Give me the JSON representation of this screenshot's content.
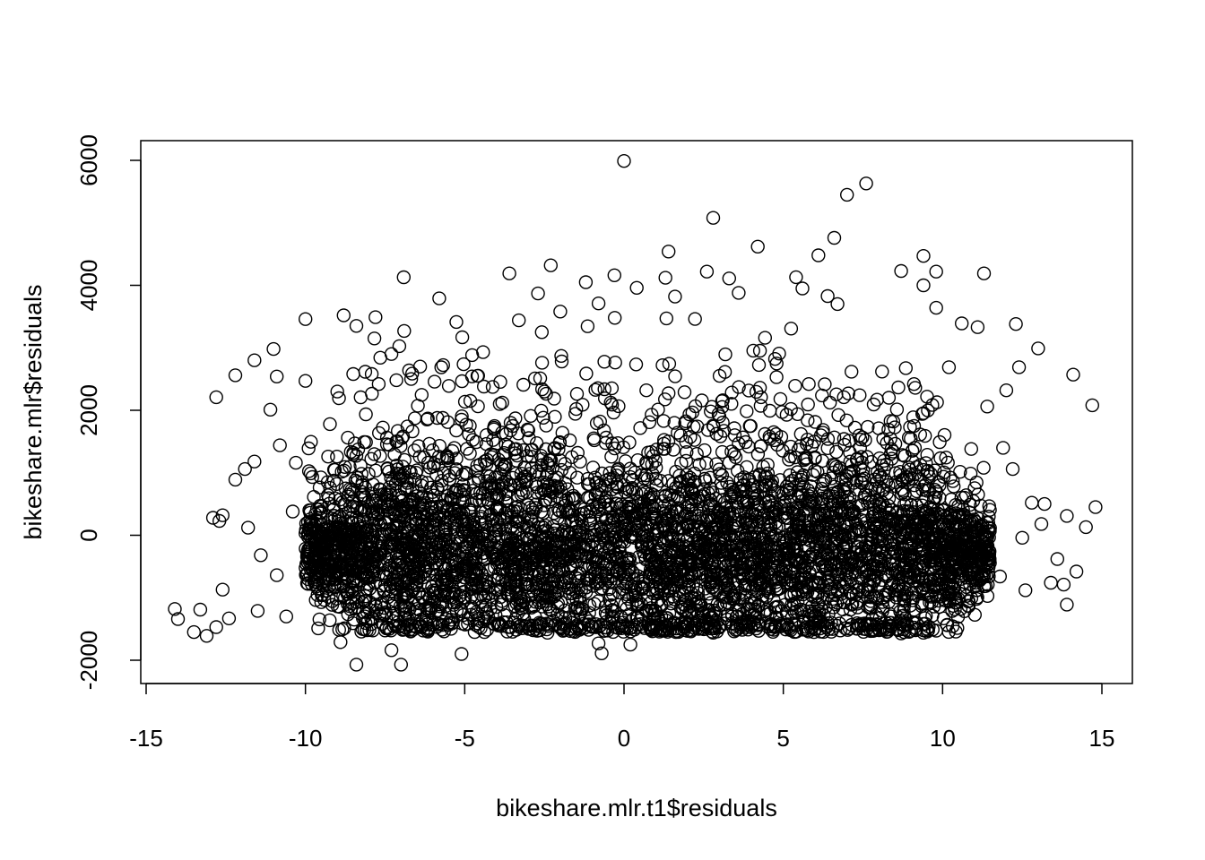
{
  "chart_data": {
    "type": "scatter",
    "title": "",
    "xlabel": "bikeshare.mlr.t1$residuals",
    "ylabel": "bikeshare.mlr$residuals",
    "xlim": [
      -15,
      15
    ],
    "ylim": [
      -2000,
      6000
    ],
    "x_ticks": [
      -15,
      -10,
      -5,
      0,
      5,
      10,
      15
    ],
    "y_ticks": [
      -2000,
      0,
      2000,
      4000,
      6000
    ],
    "x_tick_labels": [
      "-15",
      "-10",
      "-5",
      "0",
      "5",
      "10",
      "15"
    ],
    "y_tick_labels": [
      "-2000",
      "0",
      "2000",
      "4000",
      "6000"
    ],
    "marker": "open-circle",
    "grid": false,
    "legend": "none",
    "series": [
      {
        "points": [
          [
            0.0,
            5990
          ],
          [
            7.6,
            5630
          ],
          [
            7.0,
            5450
          ],
          [
            2.8,
            5080
          ],
          [
            6.6,
            4760
          ],
          [
            4.2,
            4620
          ],
          [
            1.4,
            4540
          ],
          [
            9.4,
            4470
          ],
          [
            6.1,
            4480
          ],
          [
            -2.3,
            4320
          ],
          [
            2.6,
            4220
          ],
          [
            -3.6,
            4190
          ],
          [
            11.3,
            4190
          ],
          [
            9.8,
            4220
          ],
          [
            8.7,
            4230
          ],
          [
            5.4,
            4130
          ],
          [
            3.3,
            4110
          ],
          [
            -0.3,
            4160
          ],
          [
            1.3,
            4120
          ],
          [
            9.4,
            4000
          ],
          [
            -1.2,
            4050
          ],
          [
            0.4,
            3960
          ],
          [
            5.6,
            3950
          ],
          [
            -10.0,
            3460
          ],
          [
            -8.8,
            3520
          ],
          [
            -5.8,
            3790
          ],
          [
            -7.8,
            3490
          ],
          [
            -3.3,
            3440
          ],
          [
            -2.7,
            3870
          ],
          [
            -2.0,
            3580
          ],
          [
            -0.8,
            3710
          ],
          [
            1.6,
            3820
          ],
          [
            3.6,
            3880
          ],
          [
            6.7,
            3700
          ],
          [
            9.8,
            3640
          ],
          [
            10.6,
            3390
          ],
          [
            12.3,
            3380
          ],
          [
            -8.4,
            3350
          ],
          [
            -6.9,
            3270
          ],
          [
            11.1,
            3330
          ],
          [
            13.0,
            2990
          ],
          [
            12.4,
            2690
          ],
          [
            14.1,
            2570
          ],
          [
            -12.8,
            2210
          ],
          [
            -12.2,
            2560
          ],
          [
            -11.6,
            2800
          ],
          [
            -11.0,
            2980
          ],
          [
            -10.9,
            2540
          ],
          [
            -11.1,
            2010
          ],
          [
            -10.0,
            2470
          ],
          [
            -9.0,
            2300
          ],
          [
            -8.5,
            2580
          ],
          [
            -7.7,
            2420
          ],
          [
            -7.3,
            2900
          ],
          [
            -6.4,
            2700
          ],
          [
            -5.5,
            2390
          ],
          [
            -4.6,
            2550
          ],
          [
            -3.9,
            2100
          ],
          [
            -2.5,
            2300
          ],
          [
            -1.5,
            2020
          ],
          [
            -0.6,
            2190
          ],
          [
            0.7,
            2320
          ],
          [
            1.9,
            2290
          ],
          [
            3.0,
            2550
          ],
          [
            4.3,
            2210
          ],
          [
            5.8,
            2420
          ],
          [
            6.9,
            2210
          ],
          [
            8.1,
            2620
          ],
          [
            9.1,
            2420
          ],
          [
            10.2,
            2690
          ],
          [
            11.4,
            2060
          ],
          [
            12.0,
            2320
          ],
          [
            14.7,
            2080
          ],
          [
            -11.9,
            1060
          ],
          [
            -11.6,
            1180
          ],
          [
            -10.8,
            1440
          ],
          [
            -10.3,
            1160
          ],
          [
            -9.9,
            1390
          ],
          [
            -9.1,
            1050
          ],
          [
            -8.1,
            1490
          ],
          [
            -6.8,
            1740
          ],
          [
            -5.1,
            1850
          ],
          [
            -3.7,
            1620
          ],
          [
            -1.7,
            1520
          ],
          [
            0.8,
            1810
          ],
          [
            2.3,
            1740
          ],
          [
            4.7,
            1650
          ],
          [
            6.4,
            1540
          ],
          [
            8.3,
            1690
          ],
          [
            10.9,
            1380
          ],
          [
            11.9,
            1400
          ],
          [
            12.2,
            1060
          ],
          [
            12.8,
            520
          ],
          [
            13.2,
            500
          ],
          [
            13.9,
            310
          ],
          [
            14.5,
            130
          ],
          [
            14.8,
            450
          ],
          [
            12.5,
            -40
          ],
          [
            13.1,
            180
          ],
          [
            13.6,
            -380
          ],
          [
            14.2,
            -580
          ],
          [
            13.8,
            -790
          ],
          [
            13.4,
            -760
          ],
          [
            12.6,
            -880
          ],
          [
            13.9,
            -1110
          ],
          [
            11.8,
            -660
          ],
          [
            10.9,
            -620
          ],
          [
            9.4,
            -1420
          ],
          [
            9.4,
            -1560
          ],
          [
            8.7,
            -1570
          ],
          [
            6.1,
            -1380
          ],
          [
            4.8,
            -1320
          ],
          [
            2.8,
            -1560
          ],
          [
            0.2,
            -1750
          ],
          [
            -0.7,
            -1890
          ],
          [
            -0.8,
            -1730
          ],
          [
            -2.4,
            -1560
          ],
          [
            -3.9,
            -1420
          ],
          [
            -5.1,
            -1900
          ],
          [
            -7.0,
            -2070
          ],
          [
            -8.4,
            -2070
          ],
          [
            -7.3,
            -1840
          ],
          [
            -8.9,
            -1710
          ],
          [
            -9.6,
            -1490
          ],
          [
            -10.6,
            -1300
          ],
          [
            -11.5,
            -1210
          ],
          [
            -12.4,
            -1330
          ],
          [
            -12.8,
            -1470
          ],
          [
            -13.1,
            -1610
          ],
          [
            -13.5,
            -1550
          ],
          [
            -14.0,
            -1340
          ],
          [
            -14.1,
            -1180
          ],
          [
            -13.3,
            -1190
          ],
          [
            -12.6,
            -870
          ],
          [
            -12.9,
            280
          ],
          [
            -12.6,
            320
          ],
          [
            -12.7,
            230
          ],
          [
            -12.2,
            890
          ],
          [
            -11.8,
            120
          ],
          [
            -11.4,
            -320
          ],
          [
            -10.9,
            -640
          ],
          [
            -10.4,
            380
          ],
          [
            -9.8,
            170
          ],
          [
            -9.3,
            850
          ]
        ]
      }
    ],
    "dense_cloud": {
      "x_range": [
        -10,
        11.5
      ],
      "y_center": -300,
      "y_spread": 1100,
      "y_floor": -1550,
      "count": 5200
    }
  }
}
